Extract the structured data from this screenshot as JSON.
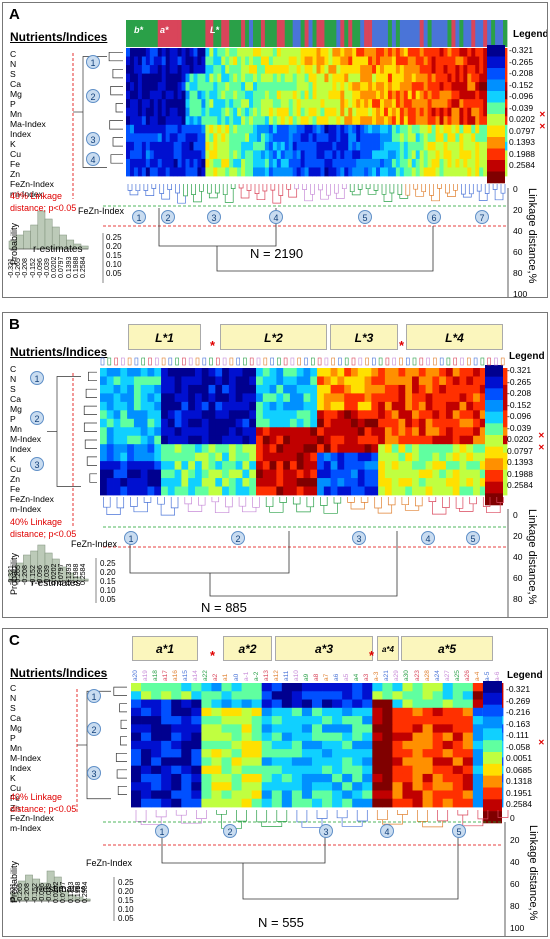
{
  "common": {
    "nutrients_title": "Nutrients/Indices",
    "legend_title": "Legend",
    "linkage_title": "Linkage distance,%",
    "linkage_ticks": [
      "0",
      "20",
      "40",
      "60",
      "80",
      "100"
    ],
    "linkage_note_line1": "40% Linkage",
    "linkage_note_line2": "distance; p<0.05",
    "hist_ylabel": "Probability",
    "hist_caption": "r-estimates",
    "hist_title": "FeZn-Index",
    "hist_yticks": [
      "0.25",
      "0.20",
      "0.15",
      "0.10",
      "0.05"
    ],
    "legend_colors": [
      "#00008f",
      "#0010d0",
      "#0050ff",
      "#0090ff",
      "#10d0ff",
      "#60ffa0",
      "#c0ff40",
      "#ffe000",
      "#ff9000",
      "#ff3000",
      "#c00000",
      "#800000"
    ],
    "colors": {
      "positive_marker": "#e00000",
      "circle_fill": "#c9dcf0",
      "circle_border": "#5f8fc7",
      "group_box": "#fbf6bd"
    }
  },
  "panels": [
    {
      "letter": "A",
      "row_labels": [
        "C",
        "N",
        "S",
        "Ca",
        "Mg",
        "P",
        "Mn",
        "Ma-Index",
        "Index",
        "K",
        "Cu",
        "Fe",
        "Zn",
        "FeZn-Index",
        "mi-Index"
      ],
      "legend_values": [
        "-0.321",
        "-0.265",
        "-0.208",
        "-0.152",
        "-0.096",
        "-0.039",
        "0.0202",
        "0.0797",
        "0.1393",
        "0.1988",
        "0.2584"
      ],
      "hist_xticks": [
        "-0.321",
        "-0.265",
        "-0.208",
        "-0.152",
        "-0.096",
        "-0.039",
        "0.0202",
        "0.0797",
        "0.1393",
        "0.1988",
        "0.2584"
      ],
      "row_cluster_ids": [
        "1",
        "2",
        "3",
        "4"
      ],
      "col_cluster_ids": [
        "1",
        "2",
        "3",
        "4",
        "5",
        "6",
        "7"
      ],
      "color_bar_labels": [
        "b*",
        "a*",
        "L*"
      ],
      "n_label": "N = 2190",
      "groups": []
    },
    {
      "letter": "B",
      "row_labels": [
        "C",
        "N",
        "S",
        "Ca",
        "Mg",
        "P",
        "Mn",
        "M-Index",
        "Index",
        "K",
        "Cu",
        "Zn",
        "Fe",
        "FeZn-Index",
        "m-Index"
      ],
      "legend_values": [
        "-0.321",
        "-0.265",
        "-0.208",
        "-0.152",
        "-0.096",
        "-0.039",
        "0.0202",
        "0.0797",
        "0.1393",
        "0.1988",
        "0.2584"
      ],
      "hist_xticks": [
        "-0.321",
        "-0.265",
        "-0.208",
        "-0.152",
        "-0.096",
        "-0.039",
        "0.0202",
        "0.0797",
        "0.1393",
        "0.1988",
        "0.2584"
      ],
      "row_cluster_ids": [
        "1",
        "2",
        "3"
      ],
      "col_cluster_ids": [
        "1",
        "2",
        "3",
        "4",
        "5"
      ],
      "n_label": "N = 885",
      "groups": [
        "L*1",
        "L*2",
        "L*3",
        "L*4"
      ]
    },
    {
      "letter": "C",
      "row_labels": [
        "C",
        "N",
        "S",
        "Ca",
        "Mg",
        "P",
        "Mn",
        "M-Index",
        "Index",
        "K",
        "Cu",
        "Fe",
        "Zn",
        "FeZn-Index",
        "m-Index"
      ],
      "legend_values": [
        "-0.321",
        "-0.269",
        "-0.216",
        "-0.163",
        "-0.111",
        "-0.058",
        "0.0051",
        "0.0685",
        "0.1318",
        "0.1951",
        "0.2584"
      ],
      "hist_xticks": [
        "-0.321",
        "-0.265",
        "-0.208",
        "-0.152",
        "-0.096",
        "-0.039",
        "0.0202",
        "0.0797",
        "0.1393",
        "0.1988",
        "0.2584"
      ],
      "row_cluster_ids": [
        "1",
        "2",
        "3"
      ],
      "col_cluster_ids": [
        "1",
        "2",
        "3",
        "4",
        "5"
      ],
      "n_label": "N = 555",
      "groups": [
        "a*1",
        "a*2",
        "a*3",
        "a*4",
        "a*5"
      ],
      "column_labels": [
        "a20",
        "a19",
        "a18",
        "a17",
        "a16",
        "a15",
        "a14",
        "a22",
        "a2",
        "a1",
        "a0",
        "a-1",
        "a-2",
        "a13",
        "a12",
        "a11",
        "a10",
        "a9",
        "a8",
        "a7",
        "a6",
        "a5",
        "a4",
        "a3",
        "a-3",
        "a21",
        "a29",
        "a30",
        "a23",
        "a28",
        "a24",
        "a27",
        "a25",
        "a26",
        "a-4",
        "a-5",
        "a-6"
      ]
    }
  ]
}
